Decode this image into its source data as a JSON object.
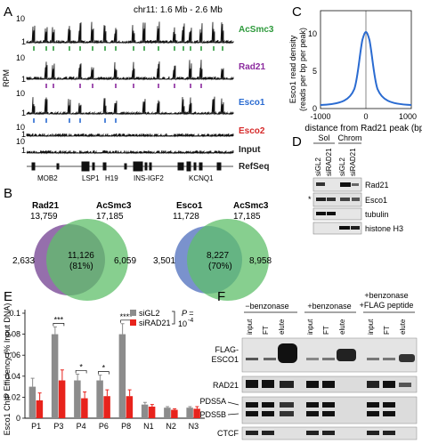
{
  "panels": [
    "A",
    "B",
    "C",
    "D",
    "E",
    "F"
  ],
  "panelA": {
    "region": "chr11: 1.6 Mb - 2.6 Mb",
    "yaxis": "RPM",
    "scales": [
      "10",
      "1",
      "10",
      "1",
      "10",
      "1",
      "10",
      "1",
      "10",
      "1"
    ],
    "tracks": [
      {
        "name": "AcSmc3",
        "color": "#2e9a3c"
      },
      {
        "name": "Rad21",
        "color": "#8b2a9e"
      },
      {
        "name": "Esco1",
        "color": "#2a6bd1"
      },
      {
        "name": "Esco2",
        "color": "#d62a2a"
      },
      {
        "name": "Input",
        "color": "#222222"
      }
    ],
    "refseq_label": "RefSeq",
    "genes": [
      "MOB2",
      "LSP1",
      "H19",
      "INS-IGF2",
      "KCNQ1"
    ]
  },
  "panelB": {
    "left": {
      "a_name": "Rad21",
      "a_count": "13,759",
      "b_name": "AcSmc3",
      "b_count": "17,185",
      "only_a": "2,633",
      "overlap": "11,126",
      "overlap_pct": "(81%)",
      "only_b": "6,059"
    },
    "right": {
      "a_name": "Esco1",
      "a_count": "11,728",
      "b_name": "AcSmc3",
      "b_count": "17,185",
      "only_a": "3,501",
      "overlap": "8,227",
      "overlap_pct": "(70%)",
      "only_b": "8,958"
    }
  },
  "panelC": {
    "ylabel_1": "Esco1 read density",
    "ylabel_2": "(reads per bp per peak)",
    "xlabel": "distance from Rad21 peak (bp)",
    "yticks": [
      "0",
      "5",
      "10"
    ],
    "xticks": [
      "-1000",
      "0",
      "1000"
    ]
  },
  "panelD": {
    "groups": [
      "Sol",
      "Chrom"
    ],
    "lanes": [
      "siGL2",
      "siRAD21",
      "siGL2",
      "siRAD21"
    ],
    "rows": [
      "Rad21",
      "Esco1",
      "tubulin",
      "histone H3"
    ],
    "star": "*"
  },
  "panelE": {
    "ylabel": "Esco1 ChIP Efficiency (% Input DNA)",
    "stats_label": "P =",
    "stats_value": "10",
    "stats_exp": "-4",
    "significance": [
      "***",
      "*",
      "*",
      "****"
    ],
    "legend": [
      "siGL2",
      "siRAD21"
    ]
  },
  "chart_data": {
    "type": "bar",
    "categories": [
      "P1",
      "P3",
      "P4",
      "P6",
      "P8",
      "N1",
      "N2",
      "N3"
    ],
    "series": [
      {
        "name": "siGL2",
        "color": "#8c8c8c",
        "values": [
          0.03,
          0.08,
          0.036,
          0.036,
          0.08,
          0.013,
          0.01,
          0.01
        ]
      },
      {
        "name": "siRAD21",
        "color": "#e8231c",
        "values": [
          0.017,
          0.036,
          0.019,
          0.021,
          0.021,
          0.011,
          0.008,
          0.009
        ]
      }
    ],
    "errors": [
      [
        0.008,
        0.007,
        0.006,
        0.005,
        0.01,
        0.002,
        0.001,
        0.001
      ],
      [
        0.007,
        0.01,
        0.006,
        0.006,
        0.006,
        0.002,
        0.001,
        0.002
      ]
    ],
    "ylim": [
      0,
      0.1
    ],
    "yticks": [
      "0",
      "0.02",
      "0.04",
      "0.06",
      "0.08",
      "0.1"
    ],
    "ylabel": "Esco1 ChIP Efficiency (% Input DNA)",
    "legend": [
      "siGL2",
      "siRAD21"
    ]
  },
  "panelF": {
    "conditions": [
      "−benzonase",
      "+benzonase",
      "+benzonase",
      "+FLAG peptide"
    ],
    "lanes": [
      "input",
      "FT",
      "elute"
    ],
    "rows": [
      "FLAG-",
      "ESCO1",
      "RAD21",
      "PDS5A",
      "PDS5B",
      "CTCF"
    ]
  }
}
